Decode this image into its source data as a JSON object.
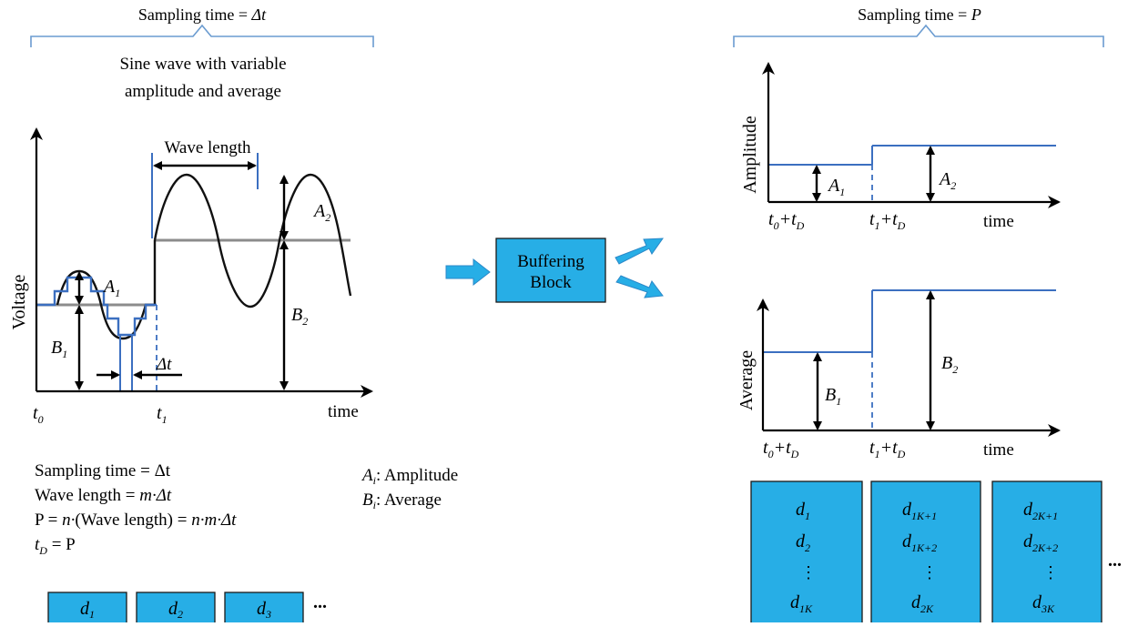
{
  "left": {
    "brace_label_prefix": "Sampling time = ",
    "brace_label_var": "Δt",
    "subtitle_line1": "Sine wave with variable",
    "subtitle_line2": "amplitude and average",
    "wave_length_label": "Wave length",
    "ylabel": "Voltage",
    "xlabel": "time",
    "t0": "t",
    "t0_sub": "0",
    "t1": "t",
    "t1_sub": "1",
    "A1": "A",
    "A1_sub": "1",
    "A2": "A",
    "A2_sub": "2",
    "B1": "B",
    "B1_sub": "1",
    "B2": "B",
    "B2_sub": "2",
    "dt_label": "Δt"
  },
  "formulas": {
    "line1": "Sampling time = Δt",
    "line2_prefix": "Wave length = ",
    "line2_var": "m·Δt",
    "line3_prefix": "P = ",
    "line3_n": "n·",
    "line3_mid": "(Wave length) = ",
    "line3_end": "n·m·Δt",
    "line4_t": "t",
    "line4_sub": "D",
    "line4_end": " = P"
  },
  "legend": {
    "a_var": "A",
    "a_sub": "i",
    "a_text": ": Amplitude",
    "b_var": "B",
    "b_sub": "i",
    "b_text": ": Average"
  },
  "center": {
    "block_line1": "Buffering",
    "block_line2": "Block"
  },
  "right": {
    "brace_label_prefix": "Sampling time = ",
    "brace_label_var": "P",
    "amp_ylabel": "Amplitude",
    "avg_ylabel": "Average",
    "xlabel": "time",
    "tick1_t": "t",
    "tick1_sub": "0",
    "tick1_plus": "+",
    "tick1_d": "t",
    "tick1_dsub": "D",
    "tick2_t": "t",
    "tick2_sub": "1",
    "tick2_plus": "+",
    "tick2_d": "t",
    "tick2_dsub": "D",
    "A1": "A",
    "A1_sub": "1",
    "A2": "A",
    "A2_sub": "2",
    "B1": "B",
    "B1_sub": "1",
    "B2": "B",
    "B2_sub": "2"
  },
  "left_blocks": [
    {
      "var": "d",
      "sub": "1"
    },
    {
      "var": "d",
      "sub": "2"
    },
    {
      "var": "d",
      "sub": "3"
    }
  ],
  "left_ellipsis": "...",
  "right_blocks": [
    {
      "vars": [
        [
          "d",
          "1"
        ],
        [
          "d",
          "2"
        ],
        [
          "⋮",
          ""
        ],
        [
          "d",
          "1K"
        ]
      ]
    },
    {
      "vars": [
        [
          "d",
          "1K+1"
        ],
        [
          "d",
          "1K+2"
        ],
        [
          "⋮",
          ""
        ],
        [
          "d",
          "2K"
        ]
      ]
    },
    {
      "vars": [
        [
          "d",
          "2K+1"
        ],
        [
          "d",
          "2K+2"
        ],
        [
          "⋮",
          ""
        ],
        [
          "d",
          "3K"
        ]
      ]
    }
  ],
  "right_ellipsis": "...",
  "colors": {
    "block_fill": "#27aee6",
    "signal_blue": "#3b6fc0",
    "brace": "#6a9bd0"
  }
}
